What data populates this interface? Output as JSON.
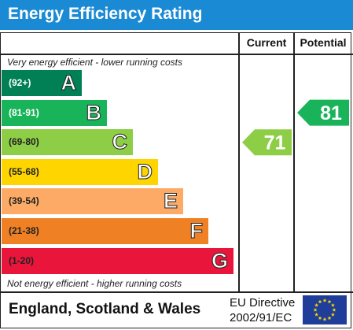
{
  "header": {
    "title": "Energy Efficiency Rating"
  },
  "columns": {
    "current": "Current",
    "potential": "Potential"
  },
  "notes": {
    "top": "Very energy efficient - lower running costs",
    "bottom": "Not energy efficient - higher running costs"
  },
  "footer": {
    "country": "England, Scotland & Wales",
    "directive_line1": "EU Directive",
    "directive_line2": "2002/91/EC"
  },
  "chart_data": {
    "type": "bar",
    "categories": [
      "A",
      "B",
      "C",
      "D",
      "E",
      "F",
      "G"
    ],
    "bands": [
      {
        "letter": "A",
        "range": "(92+)",
        "color": "#008054",
        "text_color": "#ffffff"
      },
      {
        "letter": "B",
        "range": "(81-91)",
        "color": "#19b459",
        "text_color": "#ffffff"
      },
      {
        "letter": "C",
        "range": "(69-80)",
        "color": "#8dce46",
        "text_color": "#222222"
      },
      {
        "letter": "D",
        "range": "(55-68)",
        "color": "#ffd500",
        "text_color": "#222222"
      },
      {
        "letter": "E",
        "range": "(39-54)",
        "color": "#fcaa65",
        "text_color": "#222222"
      },
      {
        "letter": "F",
        "range": "(21-38)",
        "color": "#ef8023",
        "text_color": "#222222"
      },
      {
        "letter": "G",
        "range": "(1-20)",
        "color": "#e9153b",
        "text_color": "#222222"
      }
    ],
    "current": {
      "value": 71,
      "band": "C",
      "color": "#8dce46"
    },
    "potential": {
      "value": 81,
      "band": "B",
      "color": "#19b459"
    }
  }
}
